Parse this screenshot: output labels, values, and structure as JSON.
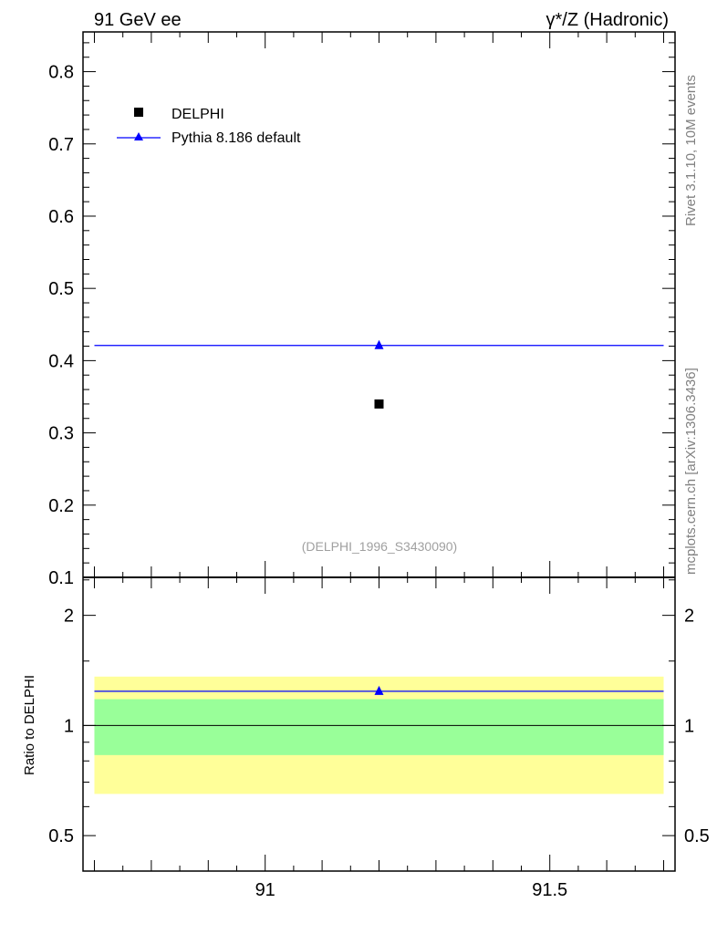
{
  "header": {
    "left": "91 GeV ee",
    "right": "γ*/Z (Hadronic)"
  },
  "side_labels": {
    "rivet": "Rivet 3.1.10,  10M events",
    "mcplots": "mcplots.cern.ch [arXiv:1306.3436]"
  },
  "watermark": "(DELPHI_1996_S3430090)",
  "colors": {
    "data": "#000000",
    "mc": "#0000ff",
    "band_inner": "#99ff99",
    "band_outer": "#ffff99"
  },
  "chart_data": [
    {
      "type": "scatter",
      "title": "γ*/Z (Hadronic)",
      "xlim": [
        90.68,
        91.72
      ],
      "ylim": [
        0.1,
        0.855
      ],
      "y_ticks": [
        "0.1",
        "0.2",
        "0.3",
        "0.4",
        "0.5",
        "0.6",
        "0.7",
        "0.8"
      ],
      "legend": {
        "placement": "top-left",
        "entries": [
          "DELPHI",
          "Pythia 8.186 default"
        ]
      },
      "series": [
        {
          "name": "DELPHI",
          "marker": "square",
          "x": [
            91.2
          ],
          "y": [
            0.34
          ]
        },
        {
          "name": "Pythia 8.186 default",
          "marker": "triangle",
          "x": [
            91.2
          ],
          "y": [
            0.421
          ],
          "xrange": [
            90.7,
            91.7
          ]
        }
      ]
    },
    {
      "type": "line",
      "ylabel": "Ratio to DELPHI",
      "yscale": "log",
      "xlim": [
        90.68,
        91.72
      ],
      "ylim": [
        0.4,
        2.54
      ],
      "x_ticks": [
        "91",
        "91.5"
      ],
      "y_ticks": [
        "0.5",
        "1",
        "2"
      ],
      "bands": {
        "inner": [
          0.83,
          1.18
        ],
        "outer": [
          0.65,
          1.36
        ],
        "xrange": [
          90.7,
          91.7
        ]
      },
      "series": [
        {
          "name": "Pythia 8.186 default",
          "x": [
            91.2
          ],
          "y": [
            1.24
          ],
          "xrange": [
            90.7,
            91.7
          ]
        }
      ]
    }
  ]
}
